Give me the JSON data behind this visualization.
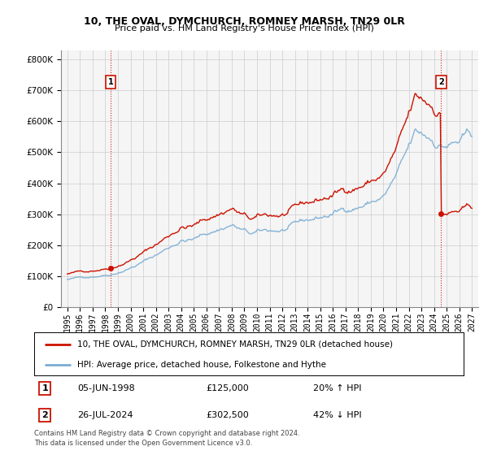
{
  "title1": "10, THE OVAL, DYMCHURCH, ROMNEY MARSH, TN29 0LR",
  "title2": "Price paid vs. HM Land Registry's House Price Index (HPI)",
  "legend_line1": "10, THE OVAL, DYMCHURCH, ROMNEY MARSH, TN29 0LR (detached house)",
  "legend_line2": "HPI: Average price, detached house, Folkestone and Hythe",
  "annotation1_date": "05-JUN-1998",
  "annotation1_price": "£125,000",
  "annotation1_hpi": "20% ↑ HPI",
  "annotation2_date": "26-JUL-2024",
  "annotation2_price": "£302,500",
  "annotation2_hpi": "42% ↓ HPI",
  "footer": "Contains HM Land Registry data © Crown copyright and database right 2024.\nThis data is licensed under the Open Government Licence v3.0.",
  "sale1_x": 1998.43,
  "sale1_y": 125000,
  "sale2_x": 2024.57,
  "sale2_y": 302500,
  "hpi_color": "#7aadd4",
  "price_color": "#cc1100",
  "background_color": "#f5f5f5",
  "grid_color": "#cccccc",
  "ylim": [
    0,
    830000
  ],
  "xlim_start": 1994.5,
  "xlim_end": 2027.5
}
